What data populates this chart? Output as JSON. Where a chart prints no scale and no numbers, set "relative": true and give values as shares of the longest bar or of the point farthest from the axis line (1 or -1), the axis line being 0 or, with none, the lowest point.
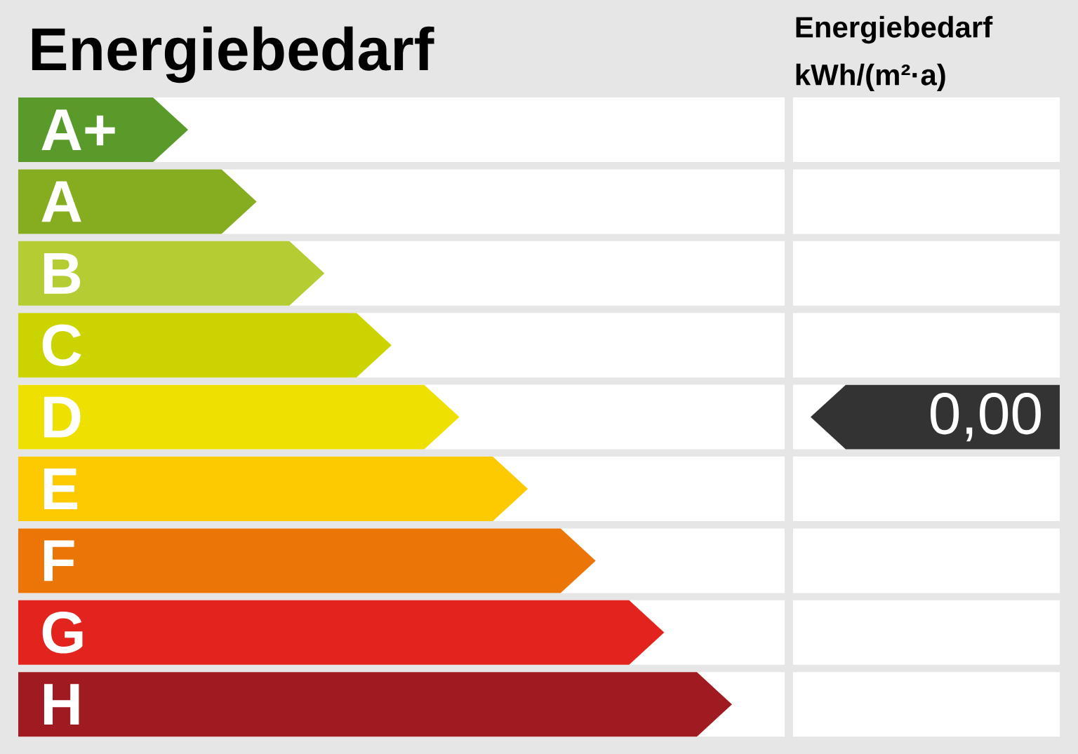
{
  "chart_data": {
    "type": "bar",
    "orientation": "horizontal",
    "relative": true,
    "title": "Energiebedarf",
    "categories": [
      "A+",
      "A",
      "B",
      "C",
      "D",
      "E",
      "F",
      "G",
      "H"
    ],
    "values": [
      0.238,
      0.334,
      0.429,
      0.523,
      0.618,
      0.714,
      0.809,
      0.905,
      1
    ],
    "colors": [
      "#5a9a2a",
      "#86ad1f",
      "#b5cc33",
      "#ccd400",
      "#eee000",
      "#fdc900",
      "#ec7508",
      "#e2231e",
      "#a01a22"
    ],
    "annotations": [
      "Energiebedarf kWh/(m²·a)",
      "0,00"
    ]
  }
}
